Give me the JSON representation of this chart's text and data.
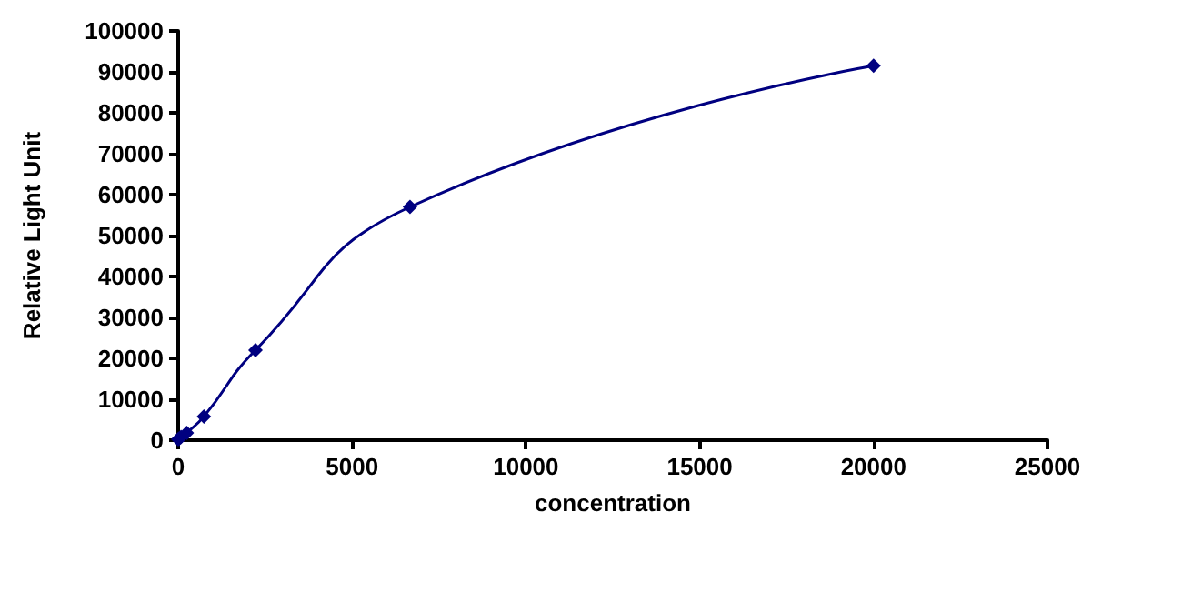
{
  "chart_data": {
    "type": "line",
    "xlabel": "concentration",
    "ylabel": "Relative Light Unit",
    "x": [
      0,
      27,
      82,
      247,
      741,
      2222,
      6667,
      20000
    ],
    "series": [
      {
        "color": "#000080",
        "values": [
          200,
          400,
          800,
          1800,
          5800,
          22000,
          57000,
          91500
        ]
      }
    ],
    "xlim": [
      0,
      25000
    ],
    "xticks": [
      0,
      5000,
      10000,
      15000,
      20000,
      25000
    ],
    "ylim": [
      0,
      100000
    ],
    "yticks": [
      0,
      10000,
      20000,
      30000,
      40000,
      50000,
      60000,
      70000,
      80000,
      90000,
      100000
    ],
    "grid": false,
    "marker": "diamond",
    "line_style": "solid"
  }
}
